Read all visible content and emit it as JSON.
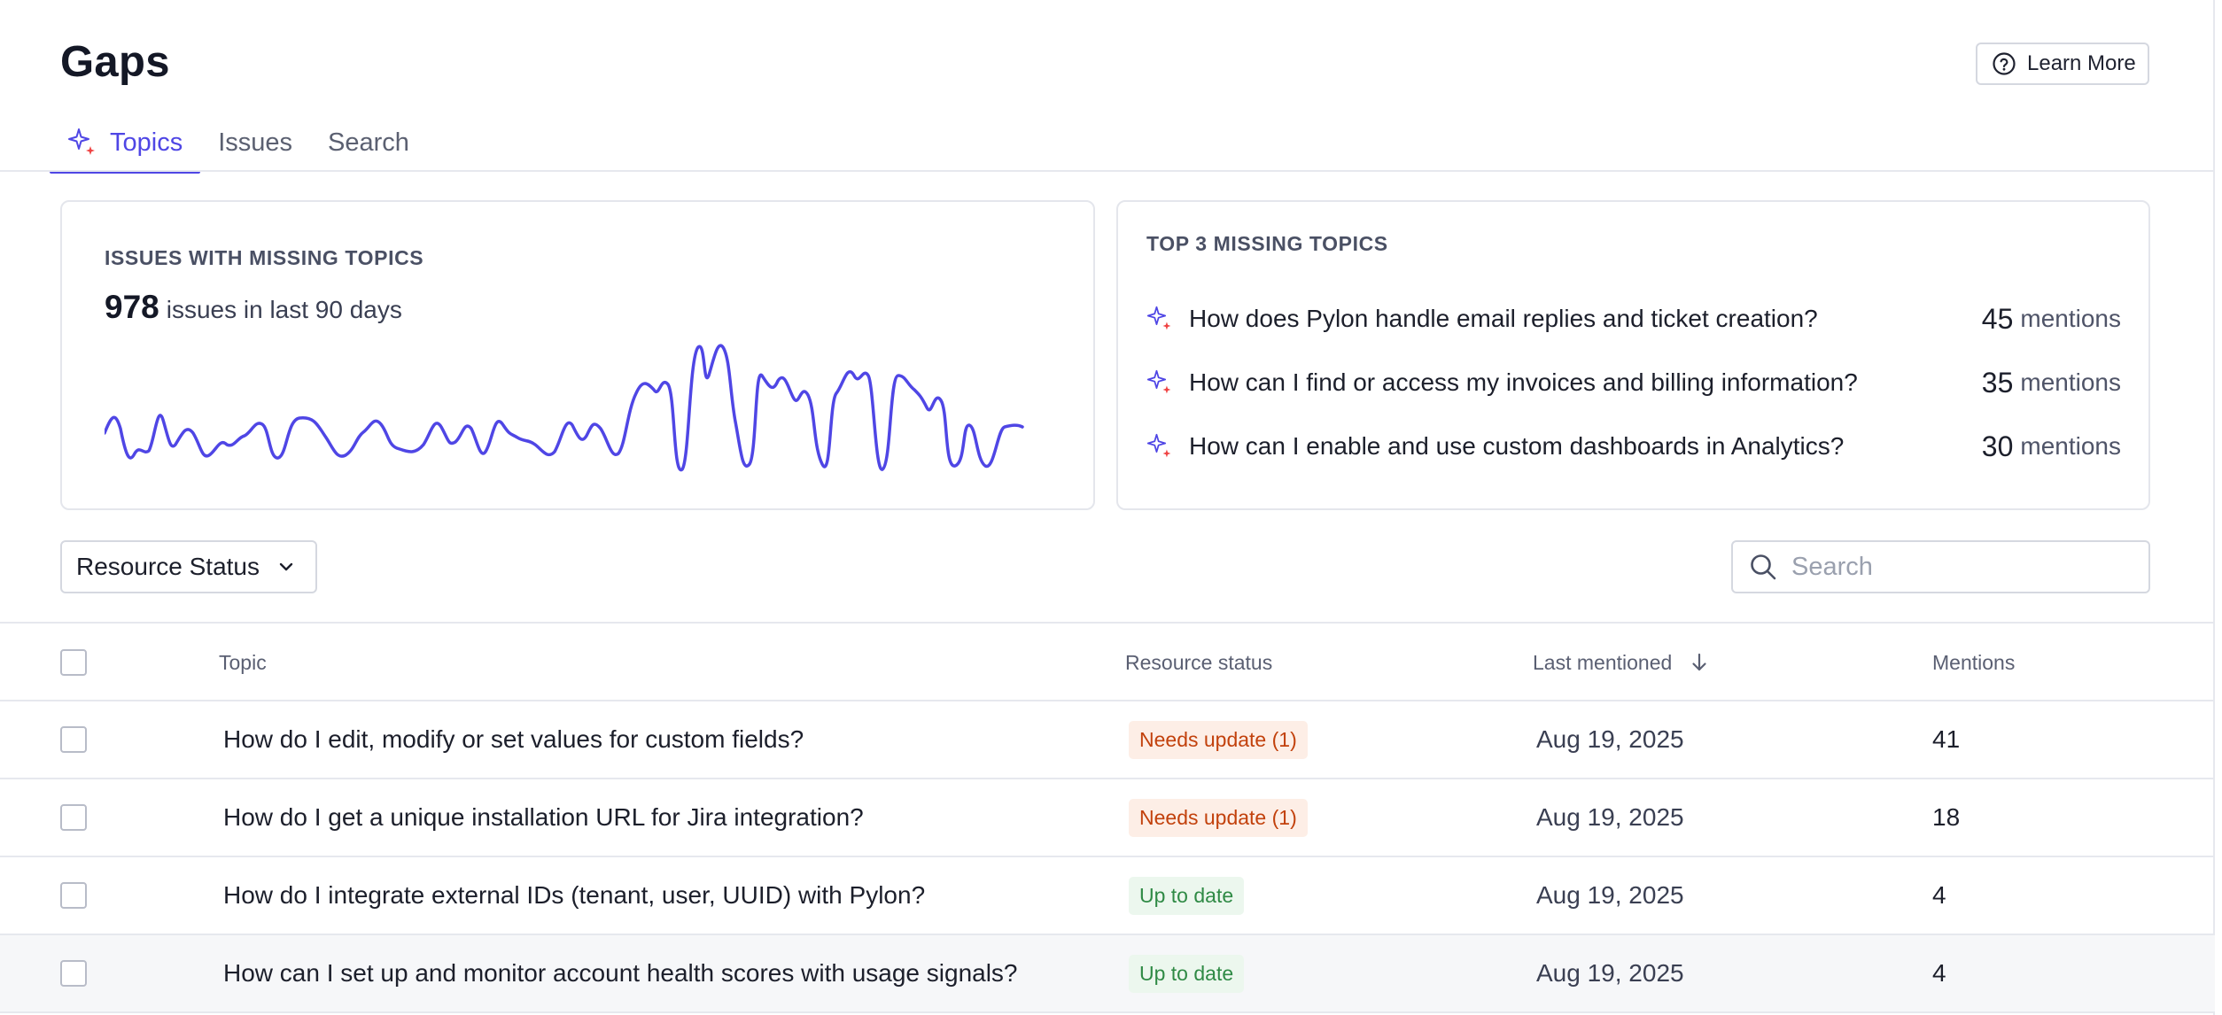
{
  "header": {
    "title": "Gaps",
    "learn_more_label": "Learn More"
  },
  "tabs": [
    {
      "label": "Topics",
      "active": true,
      "icon": "sparkle-icon"
    },
    {
      "label": "Issues",
      "active": false
    },
    {
      "label": "Search",
      "active": false
    }
  ],
  "missing_topics_card": {
    "heading": "ISSUES WITH MISSING TOPICS",
    "count": "978",
    "count_suffix": "issues in last 90 days",
    "sparkline_color": "#4f46e5"
  },
  "top_missing_card": {
    "heading": "TOP 3 MISSING TOPICS",
    "items": [
      {
        "topic": "How does Pylon handle email replies and ticket creation?",
        "mentions": "45",
        "unit": "mentions"
      },
      {
        "topic": "How can I find or access my invoices and billing information?",
        "mentions": "35",
        "unit": "mentions"
      },
      {
        "topic": "How can I enable and use custom dashboards in Analytics?",
        "mentions": "30",
        "unit": "mentions"
      }
    ]
  },
  "filters": {
    "resource_status_label": "Resource Status",
    "search_placeholder": "Search"
  },
  "table": {
    "columns": {
      "topic": "Topic",
      "resource_status": "Resource status",
      "last_mentioned": "Last mentioned",
      "mentions": "Mentions"
    },
    "rows": [
      {
        "topic": "How do I edit, modify or set values for custom fields?",
        "status": "Needs update (1)",
        "status_kind": "warn",
        "last_mentioned": "Aug 19, 2025",
        "mentions": "41"
      },
      {
        "topic": "How do I get a unique installation URL for Jira integration?",
        "status": "Needs update (1)",
        "status_kind": "warn",
        "last_mentioned": "Aug 19, 2025",
        "mentions": "18"
      },
      {
        "topic": "How do I integrate external IDs (tenant, user, UUID) with Pylon?",
        "status": "Up to date",
        "status_kind": "ok",
        "last_mentioned": "Aug 19, 2025",
        "mentions": "4"
      },
      {
        "topic": "How can I set up and monitor account health scores with usage signals?",
        "status": "Up to date",
        "status_kind": "ok",
        "last_mentioned": "Aug 19, 2025",
        "mentions": "4"
      }
    ]
  },
  "colors": {
    "accent": "#4f46e5",
    "warn_bg": "#fdeee6",
    "warn_text": "#c2410c",
    "ok_bg": "#ecf7ee",
    "ok_text": "#2f8a45"
  }
}
